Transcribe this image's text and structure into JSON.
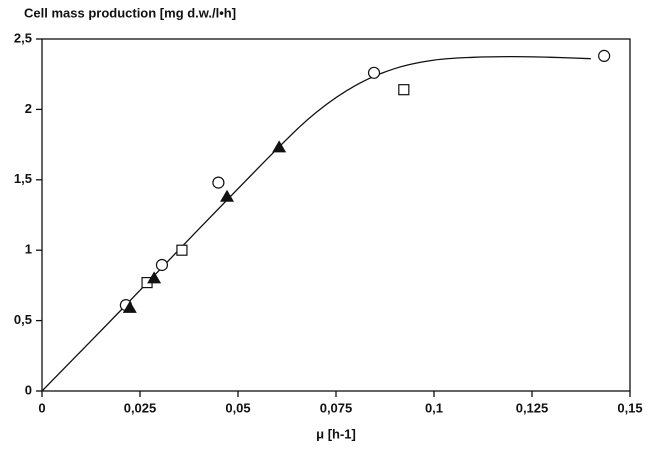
{
  "chart_data": {
    "type": "scatter",
    "title": "Cell mass production [mg d.w./l•h]",
    "x_label": "μ [h-1]",
    "xlim": [
      0,
      0.15
    ],
    "ylim": [
      0,
      2.5
    ],
    "xticks": [
      0,
      {
        "value": 0.025,
        "label": "0,025"
      },
      {
        "value": 0.05,
        "label": "0,05"
      },
      {
        "value": 0.075,
        "label": "0,075"
      },
      {
        "value": 0.1,
        "label": "0,1"
      },
      {
        "value": 0.125,
        "label": "0,125"
      },
      {
        "value": 0.15,
        "label": "0,15"
      }
    ],
    "yticks": [
      0,
      {
        "value": 0.5,
        "label": "0,5"
      },
      1,
      {
        "value": 1.5,
        "label": "1,5"
      },
      2,
      {
        "value": 2.5,
        "label": "2,5"
      }
    ],
    "grid": false,
    "series": [
      {
        "marker": "circle",
        "color": "#111",
        "x": [
          0.0214,
          0.0306,
          0.045,
          0.0847,
          0.1434
        ],
        "values": [
          0.61,
          0.895,
          1.48,
          2.26,
          2.38
        ]
      },
      {
        "marker": "square",
        "color": "#111",
        "x": [
          0.0268,
          0.0357,
          0.0923
        ],
        "values": [
          0.77,
          1.0,
          2.14
        ]
      },
      {
        "marker": "triangle",
        "color": "#111",
        "x": [
          0.0224,
          0.0286,
          0.0472,
          0.0605
        ],
        "values": [
          0.59,
          0.8,
          1.38,
          1.73
        ]
      },
      {
        "marker": "line",
        "color": "#111",
        "x": [
          0,
          0.02,
          0.04,
          0.06,
          0.07,
          0.08,
          0.09,
          0.1,
          0.11,
          0.12,
          0.13,
          0.14
        ],
        "values": [
          0,
          0.57,
          1.15,
          1.72,
          1.98,
          2.17,
          2.29,
          2.35,
          2.37,
          2.375,
          2.37,
          2.36
        ]
      }
    ]
  }
}
